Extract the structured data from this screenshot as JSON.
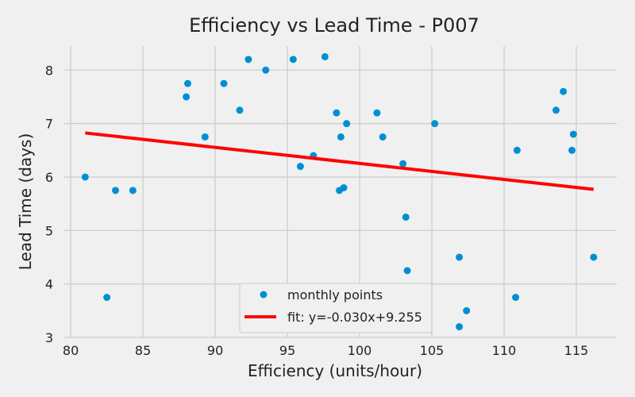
{
  "chart_data": {
    "type": "scatter",
    "title": "Efficiency vs Lead Time - P007",
    "xlabel": "Efficiency (units/hour)",
    "ylabel": "Lead Time (days)",
    "xlim": [
      79.5,
      117.8
    ],
    "ylim": [
      3.0,
      8.45
    ],
    "xticks": [
      80,
      85,
      90,
      95,
      100,
      105,
      110,
      115
    ],
    "yticks": [
      3,
      4,
      5,
      6,
      7,
      8
    ],
    "grid": true,
    "legend_position": "bottom-center",
    "colors": {
      "points": "#008fd5",
      "fit": "#ff0000"
    },
    "series": [
      {
        "name": "monthly points",
        "kind": "scatter",
        "points": [
          [
            81.0,
            6.0
          ],
          [
            82.5,
            3.75
          ],
          [
            83.1,
            5.75
          ],
          [
            84.3,
            5.75
          ],
          [
            88.0,
            7.5
          ],
          [
            88.1,
            7.75
          ],
          [
            89.3,
            6.75
          ],
          [
            90.6,
            7.75
          ],
          [
            91.7,
            7.25
          ],
          [
            92.3,
            8.2
          ],
          [
            93.5,
            8.0
          ],
          [
            95.4,
            8.2
          ],
          [
            95.9,
            6.2
          ],
          [
            96.8,
            6.4
          ],
          [
            97.6,
            8.25
          ],
          [
            98.4,
            7.2
          ],
          [
            98.6,
            5.75
          ],
          [
            98.7,
            6.75
          ],
          [
            98.9,
            5.8
          ],
          [
            99.1,
            7.0
          ],
          [
            101.2,
            7.2
          ],
          [
            101.6,
            6.75
          ],
          [
            103.0,
            6.25
          ],
          [
            103.2,
            5.25
          ],
          [
            103.3,
            4.25
          ],
          [
            105.2,
            7.0
          ],
          [
            106.9,
            4.5
          ],
          [
            106.9,
            3.2
          ],
          [
            107.4,
            3.5
          ],
          [
            110.8,
            3.75
          ],
          [
            110.9,
            6.5
          ],
          [
            113.6,
            7.25
          ],
          [
            114.1,
            7.6
          ],
          [
            114.7,
            6.5
          ],
          [
            114.8,
            6.8
          ],
          [
            116.2,
            4.5
          ]
        ]
      },
      {
        "name": "fit: y=-0.030x+9.255",
        "kind": "line",
        "slope": -0.03,
        "intercept": 9.255,
        "x_range": [
          81.0,
          116.2
        ]
      }
    ]
  }
}
